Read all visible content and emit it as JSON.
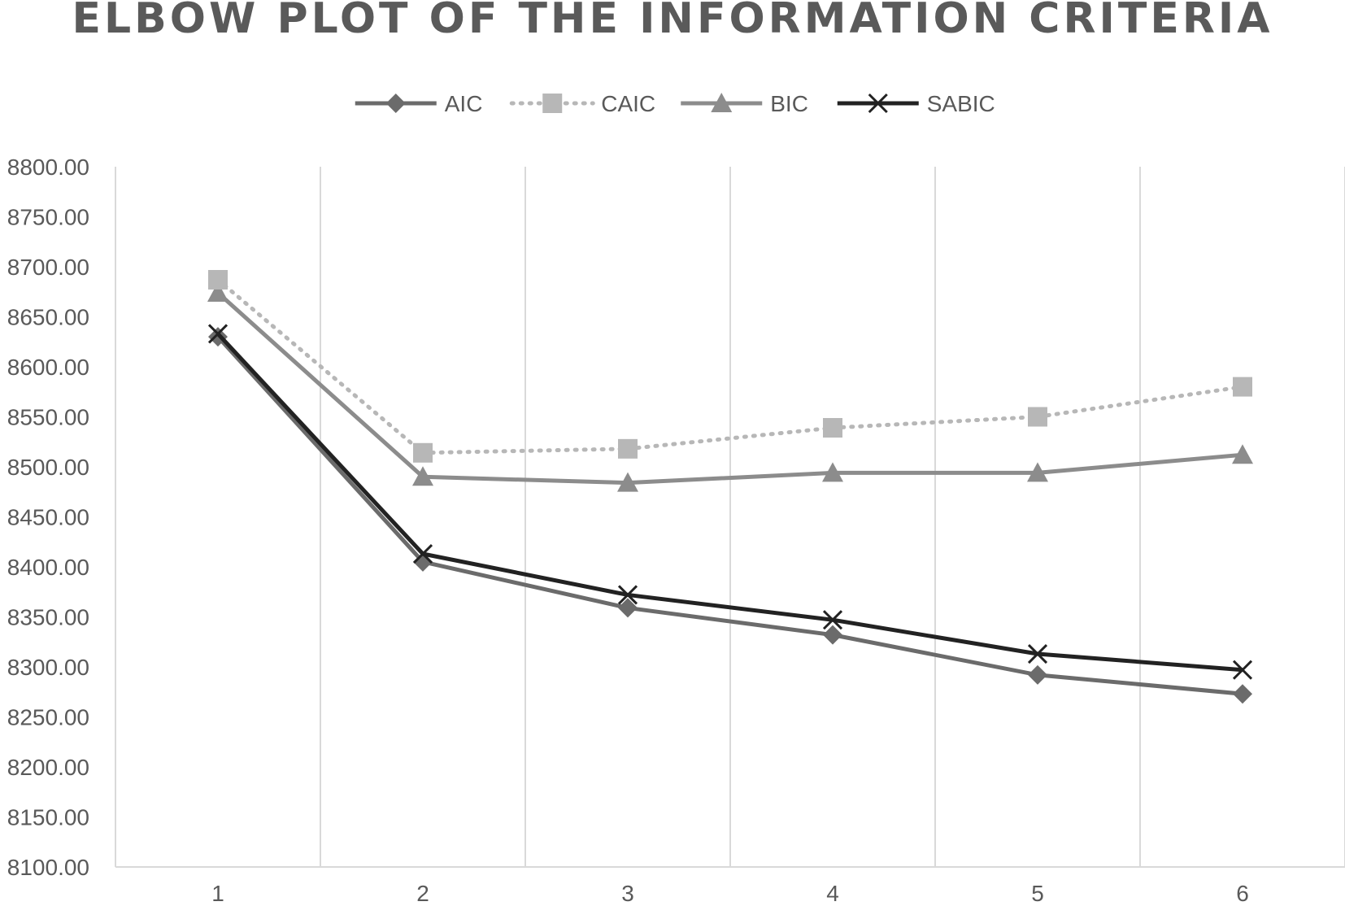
{
  "chart_data": {
    "type": "line",
    "title": "ELBOW PLOT OF THE INFORMATION CRITERIA",
    "xlabel": "",
    "ylabel": "",
    "categories": [
      "1",
      "2",
      "3",
      "4",
      "5",
      "6"
    ],
    "ylim": [
      8100,
      8800
    ],
    "yticks": [
      "8100.00",
      "8150.00",
      "8200.00",
      "8250.00",
      "8300.00",
      "8350.00",
      "8400.00",
      "8450.00",
      "8500.00",
      "8550.00",
      "8600.00",
      "8650.00",
      "8700.00",
      "8750.00",
      "8800.00"
    ],
    "grid": "vertical",
    "legend_position": "top",
    "series": [
      {
        "name": "AIC",
        "values": [
          8630,
          8405,
          8359,
          8332,
          8292,
          8273
        ],
        "color": "#6b6b6b",
        "marker": "diamond",
        "line": "solid"
      },
      {
        "name": "CAIC",
        "values": [
          8687,
          8514,
          8518,
          8539,
          8550,
          8580
        ],
        "color": "#b7b7b7",
        "marker": "square",
        "line": "dotted"
      },
      {
        "name": "BIC",
        "values": [
          8674,
          8490,
          8484,
          8494,
          8494,
          8512
        ],
        "color": "#8c8c8c",
        "marker": "triangle",
        "line": "solid"
      },
      {
        "name": "SABIC",
        "values": [
          8633,
          8413,
          8372,
          8347,
          8313,
          8297
        ],
        "color": "#222222",
        "marker": "cross",
        "line": "solid"
      }
    ]
  }
}
